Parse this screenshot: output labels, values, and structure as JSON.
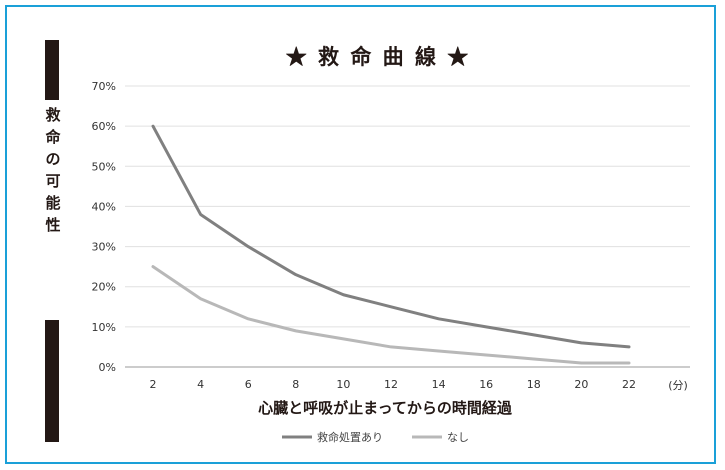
{
  "chart_data": {
    "type": "line",
    "title": "★ 救 命 曲 線 ★",
    "xlabel": "心臓と呼吸が止まってからの時間経過",
    "ylabel": "救命の可能性",
    "x_unit": "(分)",
    "x": [
      2,
      4,
      6,
      8,
      10,
      12,
      14,
      16,
      18,
      20,
      22
    ],
    "x_ticks": [
      "2",
      "4",
      "6",
      "8",
      "10",
      "12",
      "14",
      "16",
      "18",
      "20",
      "22"
    ],
    "y_ticks": [
      "0%",
      "10%",
      "20%",
      "30%",
      "40%",
      "50%",
      "60%",
      "70%"
    ],
    "ylim": [
      0,
      70
    ],
    "grid": true,
    "legend_position": "bottom-center",
    "series": [
      {
        "name": "救命処置あり",
        "color": "#808080",
        "values": [
          60,
          38,
          30,
          23,
          18,
          15,
          12,
          10,
          8,
          6,
          5
        ]
      },
      {
        "name": "なし",
        "color": "#b8b8b8",
        "values": [
          25,
          17,
          12,
          9,
          7,
          5,
          4,
          3,
          2,
          1,
          1
        ]
      }
    ]
  }
}
